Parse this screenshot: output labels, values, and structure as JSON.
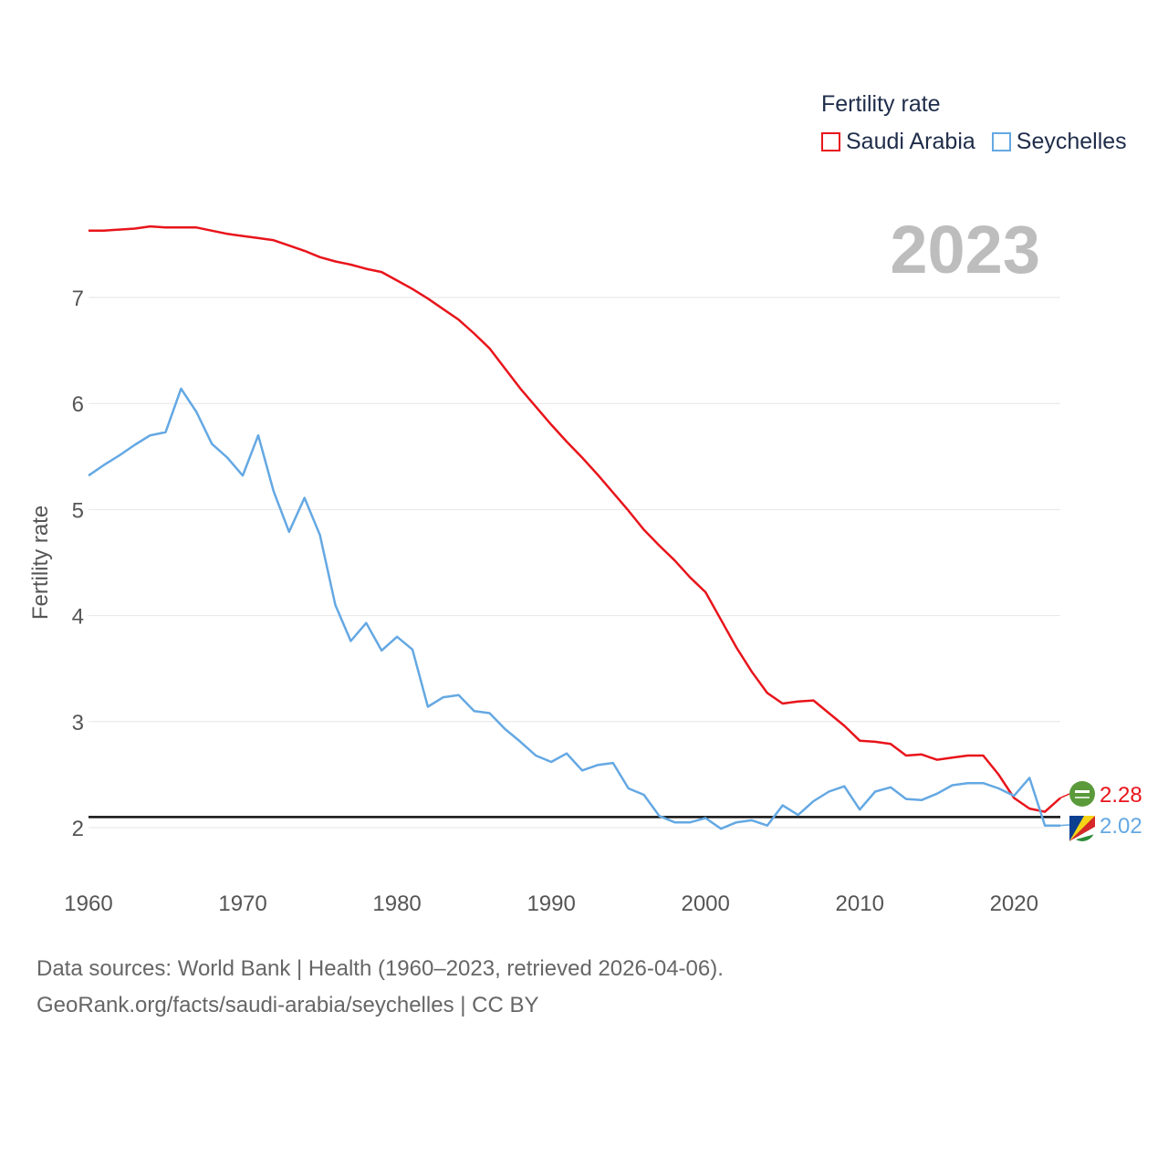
{
  "legend": {
    "title": "Fertility rate",
    "items": [
      {
        "label": "Saudi Arabia",
        "color": "#e8141b"
      },
      {
        "label": "Seychelles",
        "color": "#64a8e3"
      }
    ]
  },
  "year_label": "2023",
  "footer": {
    "line1": "Data sources: World Bank | Health (1960–2023, retrieved 2026-04-06).",
    "line2": "GeoRank.org/facts/saudi-arabia/seychelles | CC BY"
  },
  "chart_data": {
    "type": "line",
    "title": "Fertility rate",
    "xlabel": "",
    "ylabel": "Fertility rate",
    "xlim": [
      1960,
      2023
    ],
    "ylim": [
      1.5,
      8
    ],
    "xticks": [
      1960,
      1970,
      1980,
      1990,
      2000,
      2010,
      2020
    ],
    "yticks": [
      2,
      3,
      4,
      5,
      6,
      7
    ],
    "reference_line": 2.1,
    "x": [
      1960,
      1961,
      1962,
      1963,
      1964,
      1965,
      1966,
      1967,
      1968,
      1969,
      1970,
      1971,
      1972,
      1973,
      1974,
      1975,
      1976,
      1977,
      1978,
      1979,
      1980,
      1981,
      1982,
      1983,
      1984,
      1985,
      1986,
      1987,
      1988,
      1989,
      1990,
      1991,
      1992,
      1993,
      1994,
      1995,
      1996,
      1997,
      1998,
      1999,
      2000,
      2001,
      2002,
      2003,
      2004,
      2005,
      2006,
      2007,
      2008,
      2009,
      2010,
      2011,
      2012,
      2013,
      2014,
      2015,
      2016,
      2017,
      2018,
      2019,
      2020,
      2021,
      2022,
      2023
    ],
    "series": [
      {
        "name": "Saudi Arabia",
        "color": "#e8141b",
        "end_label": "2.28",
        "values": [
          7.63,
          7.63,
          7.64,
          7.65,
          7.67,
          7.66,
          7.66,
          7.66,
          7.63,
          7.6,
          7.58,
          7.56,
          7.54,
          7.49,
          7.44,
          7.38,
          7.34,
          7.31,
          7.27,
          7.24,
          7.16,
          7.08,
          6.99,
          6.89,
          6.79,
          6.66,
          6.52,
          6.33,
          6.14,
          5.97,
          5.8,
          5.64,
          5.49,
          5.33,
          5.16,
          4.99,
          4.81,
          4.66,
          4.52,
          4.36,
          4.22,
          3.96,
          3.7,
          3.47,
          3.27,
          3.17,
          3.19,
          3.2,
          3.08,
          2.96,
          2.82,
          2.81,
          2.79,
          2.68,
          2.69,
          2.64,
          2.66,
          2.68,
          2.68,
          2.5,
          2.28,
          2.18,
          2.15,
          2.28
        ]
      },
      {
        "name": "Seychelles",
        "color": "#64a8e3",
        "end_label": "2.02",
        "values": [
          5.32,
          5.42,
          5.51,
          5.61,
          5.7,
          5.73,
          6.14,
          5.92,
          5.62,
          5.49,
          5.32,
          5.7,
          5.17,
          4.79,
          5.11,
          4.76,
          4.1,
          3.76,
          3.93,
          3.67,
          3.8,
          3.68,
          3.14,
          3.23,
          3.25,
          3.1,
          3.08,
          2.93,
          2.81,
          2.68,
          2.62,
          2.7,
          2.54,
          2.59,
          2.61,
          2.37,
          2.31,
          2.11,
          2.05,
          2.05,
          2.09,
          1.99,
          2.05,
          2.07,
          2.02,
          2.21,
          2.12,
          2.25,
          2.34,
          2.39,
          2.17,
          2.34,
          2.38,
          2.27,
          2.26,
          2.32,
          2.4,
          2.42,
          2.42,
          2.37,
          2.3,
          2.47,
          2.02,
          2.02
        ]
      }
    ]
  }
}
